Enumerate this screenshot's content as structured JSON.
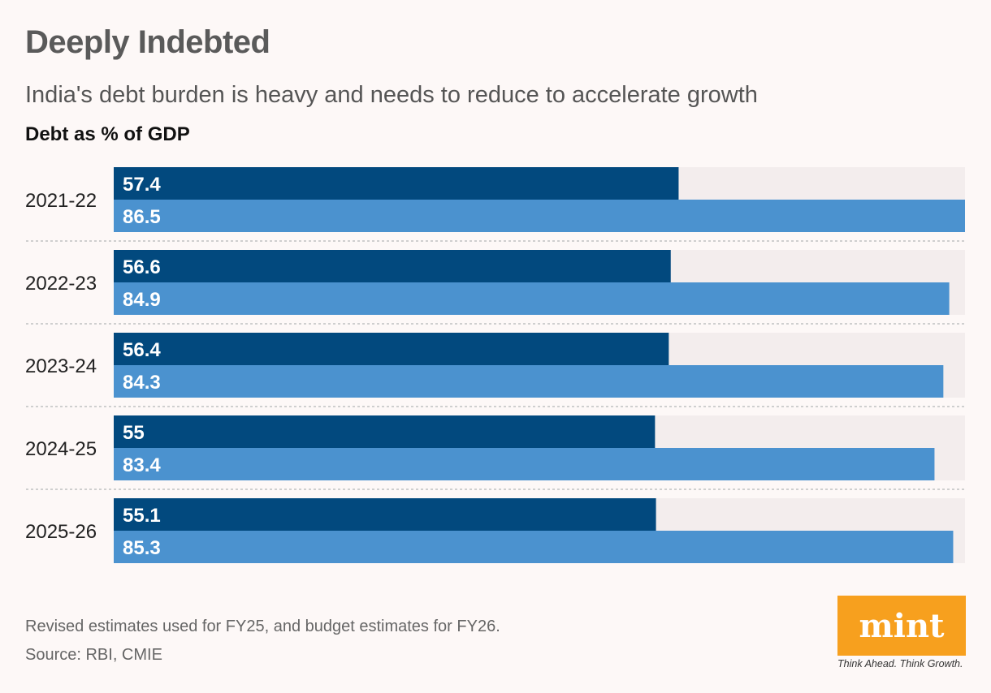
{
  "header": {
    "title": "Deeply Indebted",
    "subtitle": "India's debt burden is heavy and needs to reduce to accelerate growth",
    "measure_label": "Debt as % of GDP"
  },
  "chart_data": {
    "type": "bar",
    "orientation": "horizontal",
    "title": "Deeply Indebted",
    "subtitle": "India's debt burden is heavy and needs to reduce to accelerate growth",
    "ylabel": "Debt as % of GDP",
    "categories": [
      "2021-22",
      "2022-23",
      "2023-24",
      "2024-25",
      "2025-26"
    ],
    "series": [
      {
        "values": [
          57.4,
          56.6,
          56.4,
          55,
          55.1
        ],
        "color": "#02497e"
      },
      {
        "values": [
          86.5,
          84.9,
          84.3,
          83.4,
          85.3
        ],
        "color": "#4b92cf"
      }
    ],
    "xlim": [
      0,
      86.5
    ],
    "track_color": "#f3eded",
    "grid": false,
    "legend": "none"
  },
  "footer": {
    "note": "Revised estimates used for FY25, and budget estimates for FY26.",
    "source": "Source: RBI, CMIE"
  },
  "logo": {
    "text": "mint",
    "tagline": "Think Ahead. Think Growth.",
    "color": "#f7a01e"
  }
}
